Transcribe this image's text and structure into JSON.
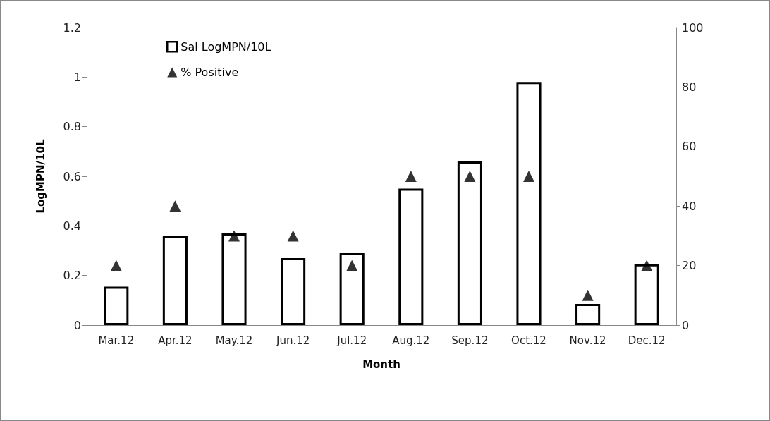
{
  "chart_data": {
    "type": "bar",
    "xlabel": "Month",
    "ylabel": "LogMPN/10L",
    "categories": [
      "Mar.12",
      "Apr.12",
      "May.12",
      "Jun.12",
      "Jul.12",
      "Aug.12",
      "Sep.12",
      "Oct.12",
      "Nov.12",
      "Dec.12"
    ],
    "series": [
      {
        "name": "Sal LogMPN/10L",
        "color": "#ffffff",
        "values": [
          0.155,
          0.36,
          0.37,
          0.27,
          0.29,
          0.55,
          0.66,
          0.98,
          0.085,
          0.245
        ]
      },
      {
        "name": "% Positive",
        "type": "scatter",
        "axis": "y2",
        "marker": "triangle",
        "color": "#000000",
        "values": [
          20,
          40,
          30,
          30,
          20,
          50,
          50,
          50,
          10,
          20
        ]
      }
    ],
    "ylim": [
      0,
      1.2
    ],
    "yticks": [
      0,
      0.2,
      0.4,
      0.6,
      0.8,
      1,
      1.2
    ],
    "y2lim": [
      0,
      100
    ],
    "y2ticks": [
      0,
      20,
      40,
      60,
      80,
      100
    ],
    "grid": false,
    "legend": "top left"
  }
}
